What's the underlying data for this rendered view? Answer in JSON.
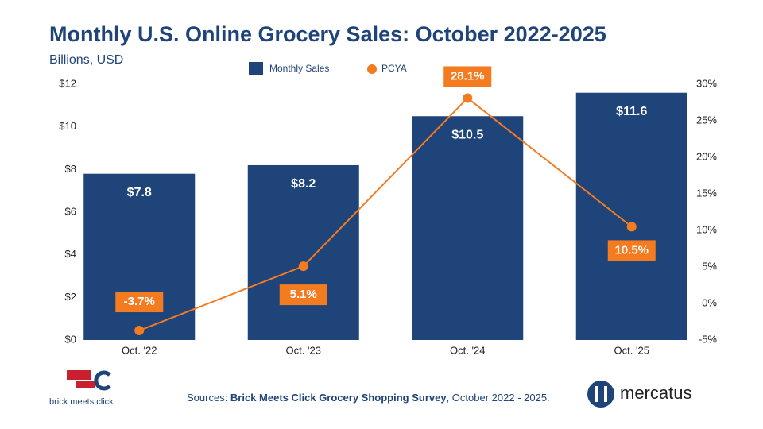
{
  "chart_data": {
    "type": "bar_line",
    "title": "Monthly U.S. Online Grocery Sales: October 2022-2025",
    "subtitle": "Billions, USD",
    "categories": [
      "Oct. '22",
      "Oct. '23",
      "Oct. '24",
      "Oct. '25"
    ],
    "series": [
      {
        "name": "Monthly Sales",
        "type": "bar",
        "color": "#1f4479",
        "values": [
          7.8,
          8.2,
          10.5,
          11.6
        ],
        "value_labels": [
          "$7.8",
          "$8.2",
          "$10.5",
          "$11.6"
        ]
      },
      {
        "name": "PCYA",
        "type": "line",
        "axis": "y2",
        "color": "#f47b20",
        "values": [
          -3.7,
          5.1,
          28.1,
          10.5
        ],
        "value_labels": [
          "-3.7%",
          "5.1%",
          "28.1%",
          "10.5%"
        ]
      }
    ],
    "ylim": [
      0,
      12
    ],
    "yticks": [
      {
        "value": 0,
        "label": "$0"
      },
      {
        "value": 2,
        "label": "$2"
      },
      {
        "value": 4,
        "label": "$4"
      },
      {
        "value": 6,
        "label": "$6"
      },
      {
        "value": 8,
        "label": "$8"
      },
      {
        "value": 10,
        "label": "$10"
      },
      {
        "value": 12,
        "label": "$12"
      }
    ],
    "y2lim": [
      -5,
      30
    ],
    "y2ticks": [
      {
        "value": -5,
        "label": "-5%"
      },
      {
        "value": 0,
        "label": "0%"
      },
      {
        "value": 5,
        "label": "5%"
      },
      {
        "value": 10,
        "label": "10%"
      },
      {
        "value": 15,
        "label": "15%"
      },
      {
        "value": 20,
        "label": "20%"
      },
      {
        "value": 25,
        "label": "25%"
      },
      {
        "value": 30,
        "label": "30%"
      }
    ],
    "grid": false,
    "legend": "top",
    "source": {
      "prefix": "Sources: ",
      "survey": "Brick Meets Click Grocery Shopping Survey",
      "suffix": ", October 2022 - 2025."
    },
    "logos": {
      "left": "brick meets click",
      "right": "mercatus"
    }
  }
}
